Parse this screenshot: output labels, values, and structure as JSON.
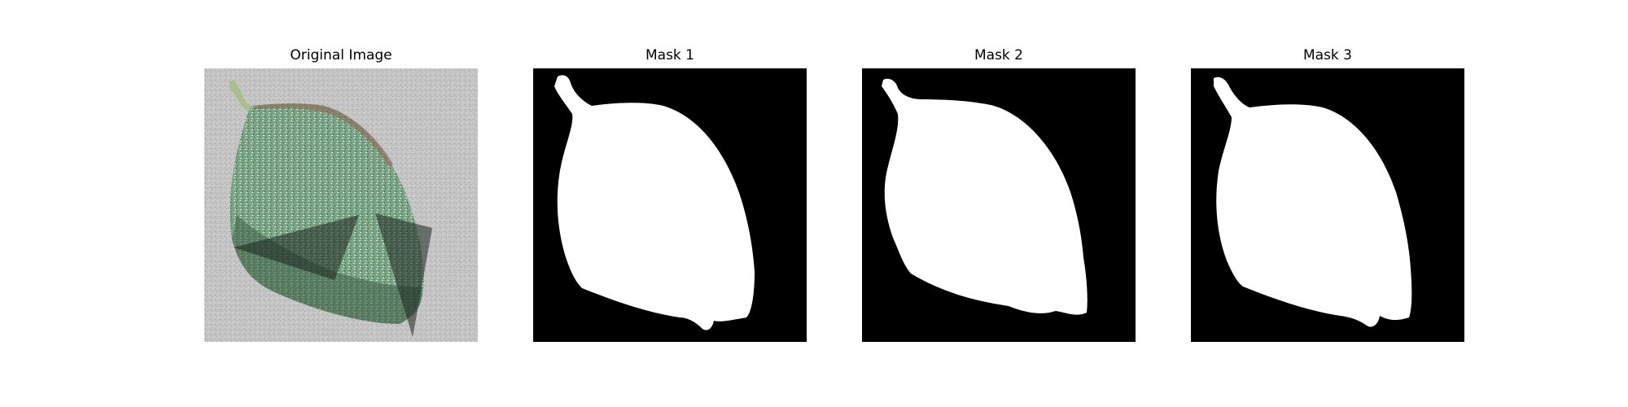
{
  "panels": [
    {
      "title": "Original Image"
    },
    {
      "title": "Mask 1"
    },
    {
      "title": "Mask 2"
    },
    {
      "title": "Mask 3"
    }
  ],
  "colors": {
    "background": "#c3c3c3",
    "leaf": "#6e9a79",
    "mask_foreground": "#ffffff",
    "mask_background": "#000000"
  }
}
